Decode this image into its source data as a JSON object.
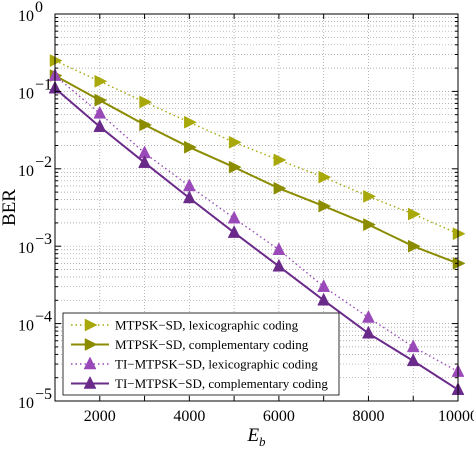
{
  "chart_data": {
    "type": "line",
    "xlabel": "E",
    "xlabel_sub": "b",
    "ylabel": "BER",
    "x_scale": "linear",
    "y_scale": "log",
    "xlim": [
      1000,
      10000
    ],
    "ylim": [
      1e-05,
      1
    ],
    "x_ticks": [
      2000,
      4000,
      6000,
      8000,
      10000
    ],
    "x_tick_labels": [
      "2000",
      "4000",
      "6000",
      "8000",
      "10000"
    ],
    "y_ticks": [
      1e-05,
      0.0001,
      0.001,
      0.01,
      0.1,
      1
    ],
    "y_tick_labels": [
      {
        "base": "10",
        "exp": "−5"
      },
      {
        "base": "10",
        "exp": "−4"
      },
      {
        "base": "10",
        "exp": "−3"
      },
      {
        "base": "10",
        "exp": "−2"
      },
      {
        "base": "10",
        "exp": "−1"
      },
      {
        "base": "10",
        "exp": "0"
      }
    ],
    "grid": true,
    "legend_position": "bottom-left",
    "x": [
      1000,
      2000,
      3000,
      4000,
      5000,
      6000,
      7000,
      8000,
      9000,
      10000
    ],
    "series": [
      {
        "name": "MTPSK−SD, lexicographic coding",
        "color": "#a8a80a",
        "line_style": "dotted",
        "marker": "triangle-right",
        "values": [
          0.25,
          0.135,
          0.073,
          0.04,
          0.022,
          0.013,
          0.0078,
          0.0044,
          0.0026,
          0.00145
        ]
      },
      {
        "name": "MTPSK−SD, complementary coding",
        "color": "#8c8c00",
        "line_style": "solid",
        "marker": "triangle-right",
        "values": [
          0.16,
          0.077,
          0.037,
          0.019,
          0.0105,
          0.0056,
          0.0033,
          0.0019,
          0.001,
          0.0006
        ]
      },
      {
        "name": "TI−MTPSK−SD, lexicographic coding",
        "color": "#9a4ab8",
        "line_style": "dotted",
        "marker": "triangle-up",
        "values": [
          0.16,
          0.052,
          0.016,
          0.006,
          0.0023,
          0.0009,
          0.0003,
          0.00012,
          5e-05,
          2.4e-05
        ]
      },
      {
        "name": "TI−MTPSK−SD, complementary coding",
        "color": "#6a2a8a",
        "line_style": "solid",
        "marker": "triangle-up",
        "values": [
          0.11,
          0.035,
          0.012,
          0.0042,
          0.0015,
          0.00055,
          0.0002,
          7.5e-05,
          3.3e-05,
          1.4e-05
        ]
      }
    ]
  }
}
